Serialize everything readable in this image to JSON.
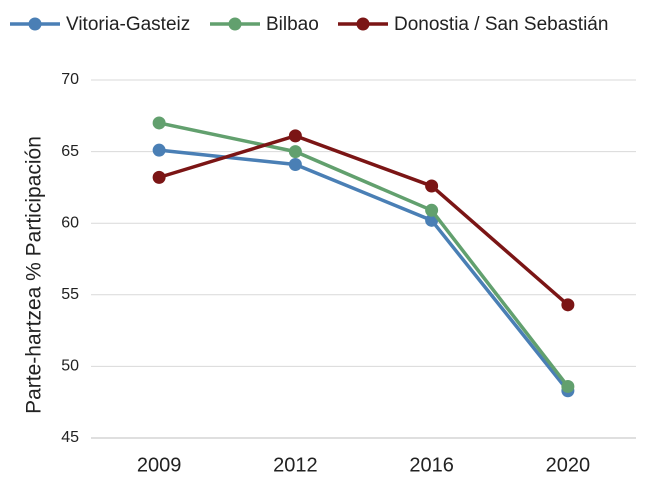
{
  "chart_data": {
    "type": "line",
    "y_label": "Parte-hartzea % Participación",
    "categories": [
      "2009",
      "2012",
      "2016",
      "2020"
    ],
    "series": [
      {
        "name": "Vitoria-Gasteiz",
        "color": "#4a7fb5",
        "values": [
          65.1,
          64.1,
          60.2,
          48.3
        ]
      },
      {
        "name": "Bilbao",
        "color": "#62a06e",
        "values": [
          67.0,
          65.0,
          60.9,
          48.6
        ]
      },
      {
        "name": "Donostia / San Sebastián",
        "color": "#7b1515",
        "values": [
          63.2,
          66.1,
          62.6,
          54.3
        ]
      }
    ],
    "ylim": [
      45,
      70
    ],
    "yticks": [
      45,
      50,
      55,
      60,
      65,
      70
    ],
    "grid": true,
    "legend": "top"
  }
}
